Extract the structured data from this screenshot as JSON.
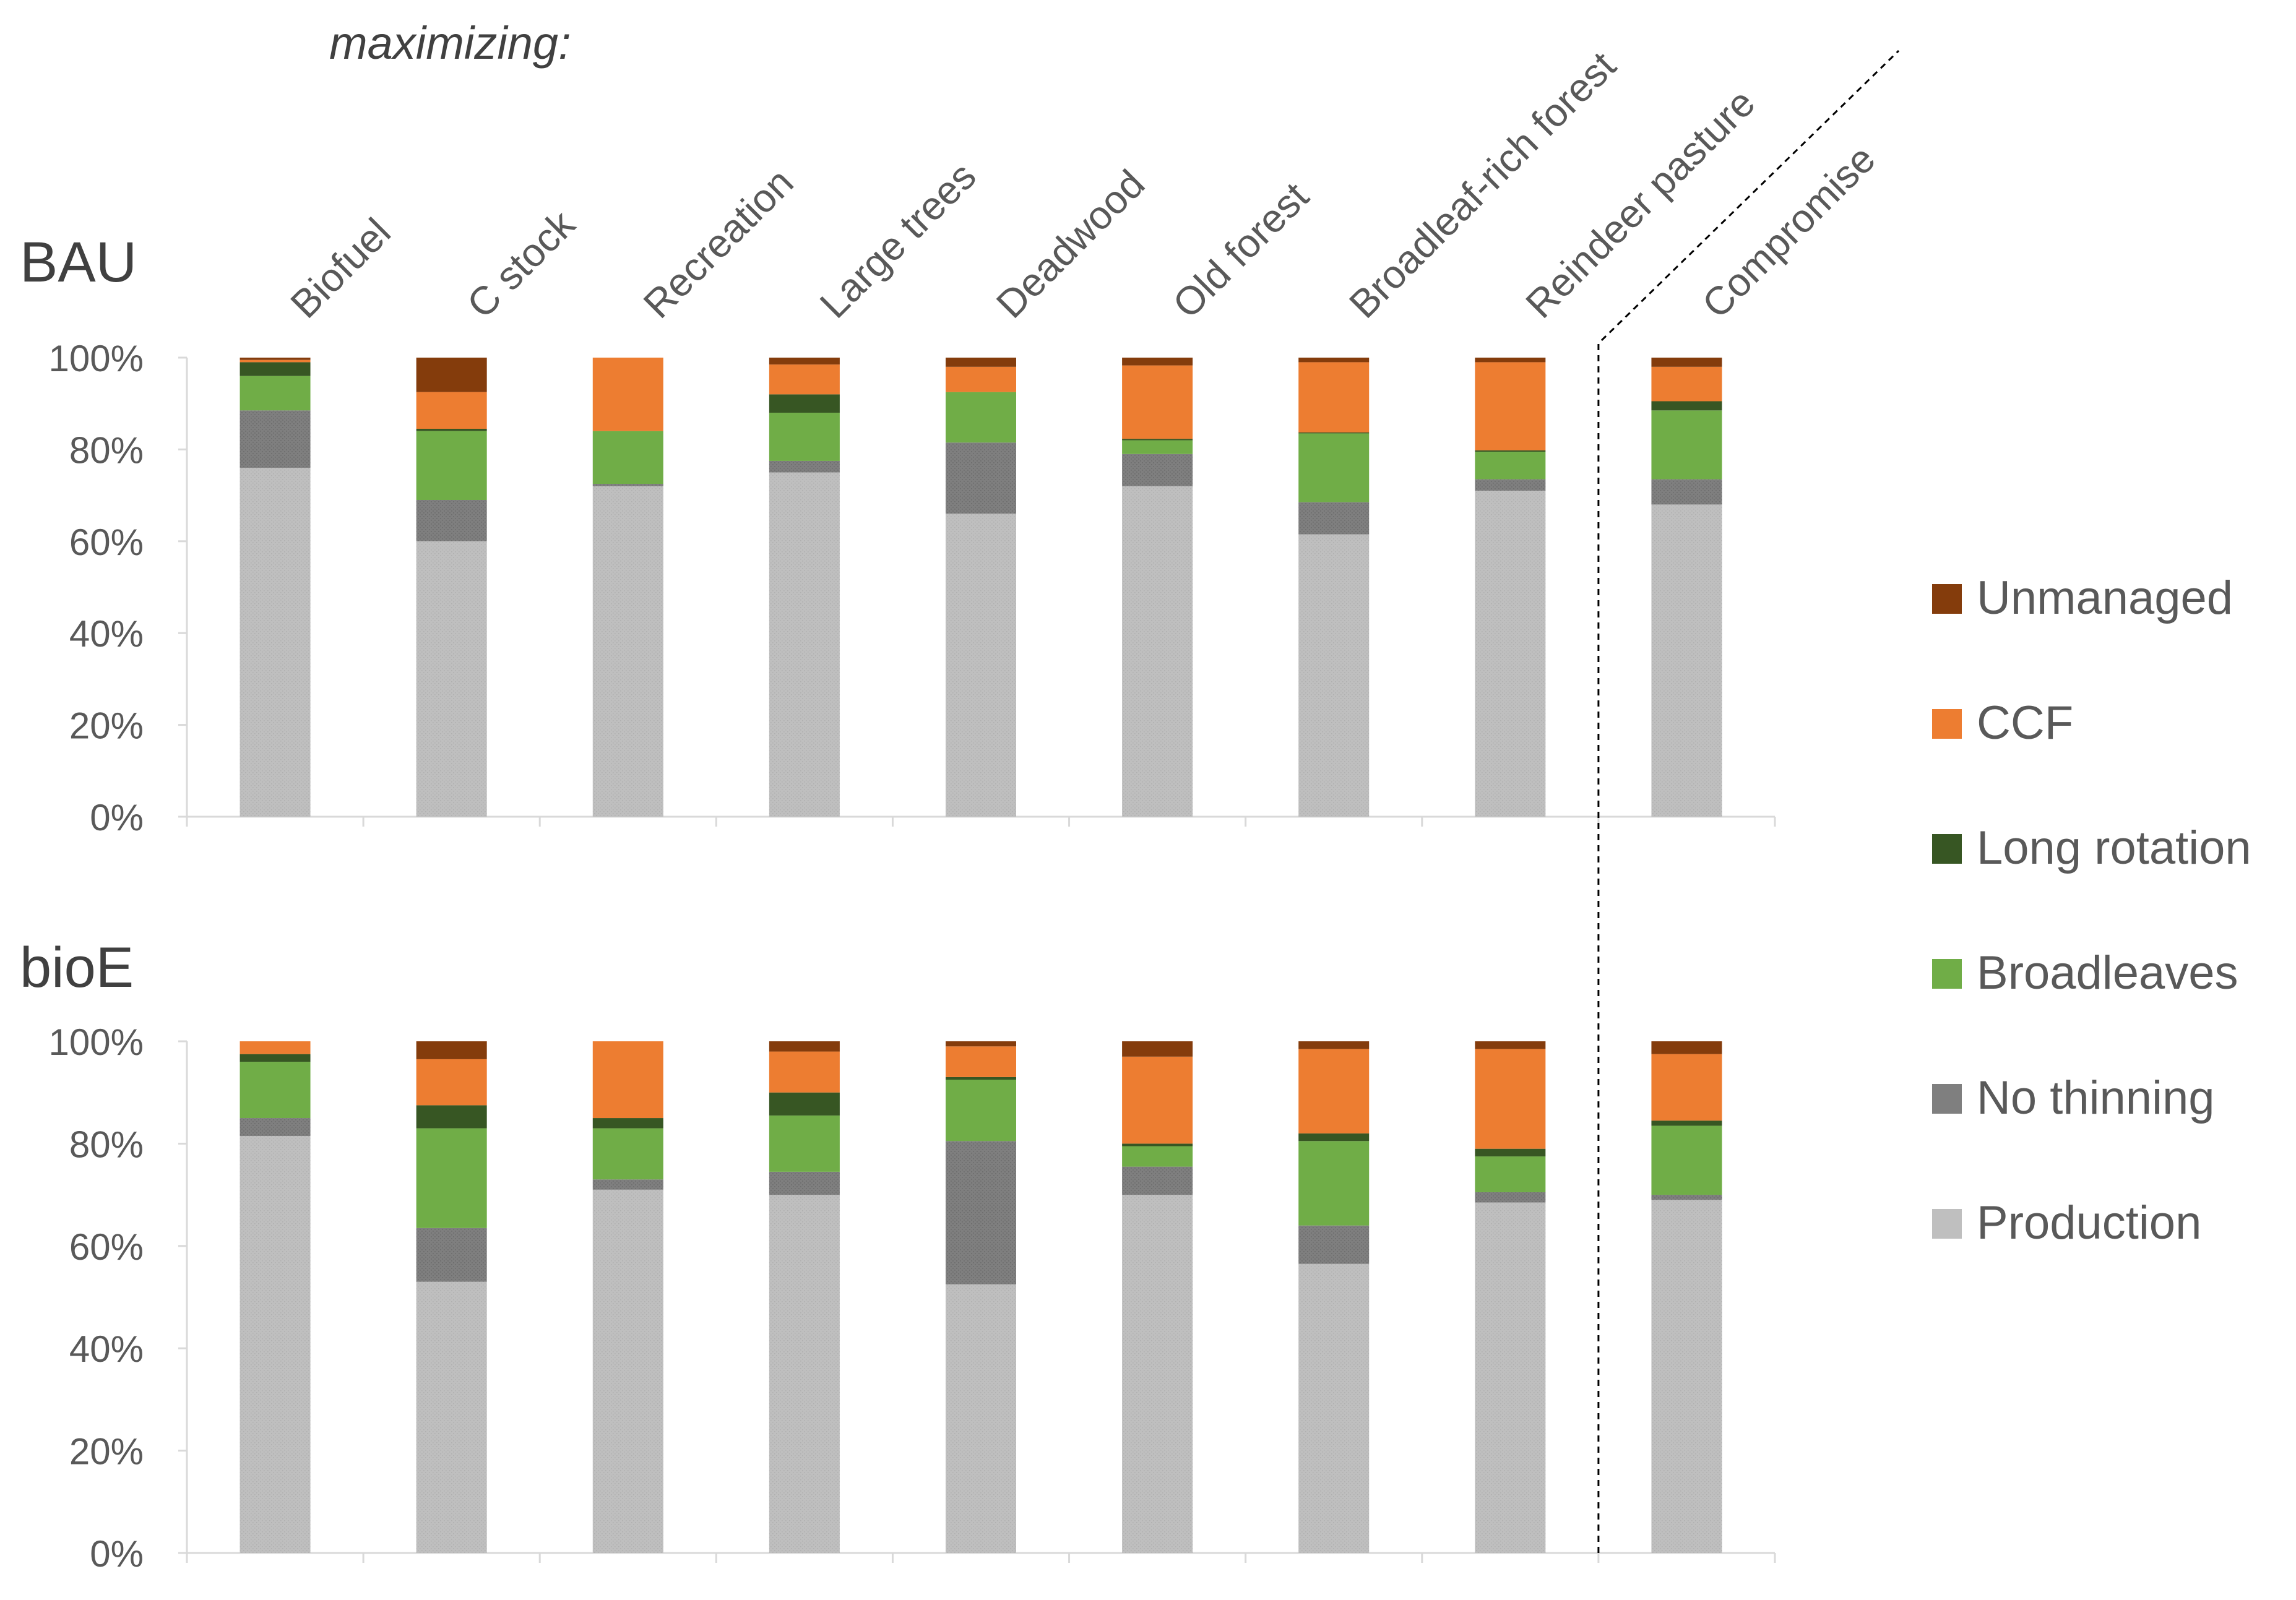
{
  "chart_data": {
    "type": "bar",
    "stacked": true,
    "percent": true,
    "header": "maximizing:",
    "categories": [
      "Biofuel",
      "C stock",
      "Recreation",
      "Large trees",
      "Deadwood",
      "Old forest",
      "Broadleaf-rich forest",
      "Reindeer pasture",
      "Compromise"
    ],
    "y_ticks": [
      "0%",
      "20%",
      "40%",
      "60%",
      "80%",
      "100%"
    ],
    "ylim": [
      0,
      100
    ],
    "legend": {
      "placement": "right",
      "entries": [
        "Unmanaged",
        "CCF",
        "Long rotation",
        "Broadleaves",
        "No thinning",
        "Production"
      ]
    },
    "colors": {
      "Production": "#bfbfbf",
      "No thinning": "#7f7f7f",
      "Broadleaves": "#70ad47",
      "Long rotation": "#375623",
      "CCF": "#ed7d31",
      "Unmanaged": "#843c0c"
    },
    "panels": [
      {
        "title": "BAU",
        "series": [
          {
            "name": "Production",
            "values": [
              76,
              60,
              72,
              75,
              66,
              72,
              61.5,
              71,
              68
            ]
          },
          {
            "name": "No thinning",
            "values": [
              12.5,
              9,
              0.5,
              2.5,
              15.5,
              7,
              7,
              2.5,
              5.5
            ]
          },
          {
            "name": "Broadleaves",
            "values": [
              7.5,
              15,
              11.5,
              10.5,
              11,
              3,
              15,
              6,
              15
            ]
          },
          {
            "name": "Long rotation",
            "values": [
              3,
              0.5,
              0,
              4,
              0,
              0.3,
              0.2,
              0.3,
              2
            ]
          },
          {
            "name": "CCF",
            "values": [
              0.5,
              8,
              16,
              6.5,
              5.5,
              16,
              15.3,
              19.2,
              7.5
            ]
          },
          {
            "name": "Unmanaged",
            "values": [
              0.5,
              7.5,
              0,
              1.5,
              2,
              1.7,
              1,
              1,
              2
            ]
          }
        ]
      },
      {
        "title": "bioE",
        "series": [
          {
            "name": "Production",
            "values": [
              81.5,
              53,
              71,
              70,
              52.5,
              70,
              56.5,
              68.5,
              69
            ]
          },
          {
            "name": "No thinning",
            "values": [
              3.5,
              10.5,
              2,
              4.5,
              28,
              5.5,
              7.5,
              2,
              1
            ]
          },
          {
            "name": "Broadleaves",
            "values": [
              11,
              19.5,
              10,
              11,
              12,
              4,
              16.5,
              7,
              13.5
            ]
          },
          {
            "name": "Long rotation",
            "values": [
              1.5,
              4.5,
              2,
              4.5,
              0.5,
              0.5,
              1.5,
              1.5,
              1
            ]
          },
          {
            "name": "CCF",
            "values": [
              2.5,
              9,
              15,
              8,
              6,
              17,
              16.5,
              19.5,
              13
            ]
          },
          {
            "name": "Unmanaged",
            "values": [
              0,
              3.5,
              0,
              2,
              1,
              3,
              1.5,
              1.5,
              2.5
            ]
          }
        ]
      }
    ]
  }
}
